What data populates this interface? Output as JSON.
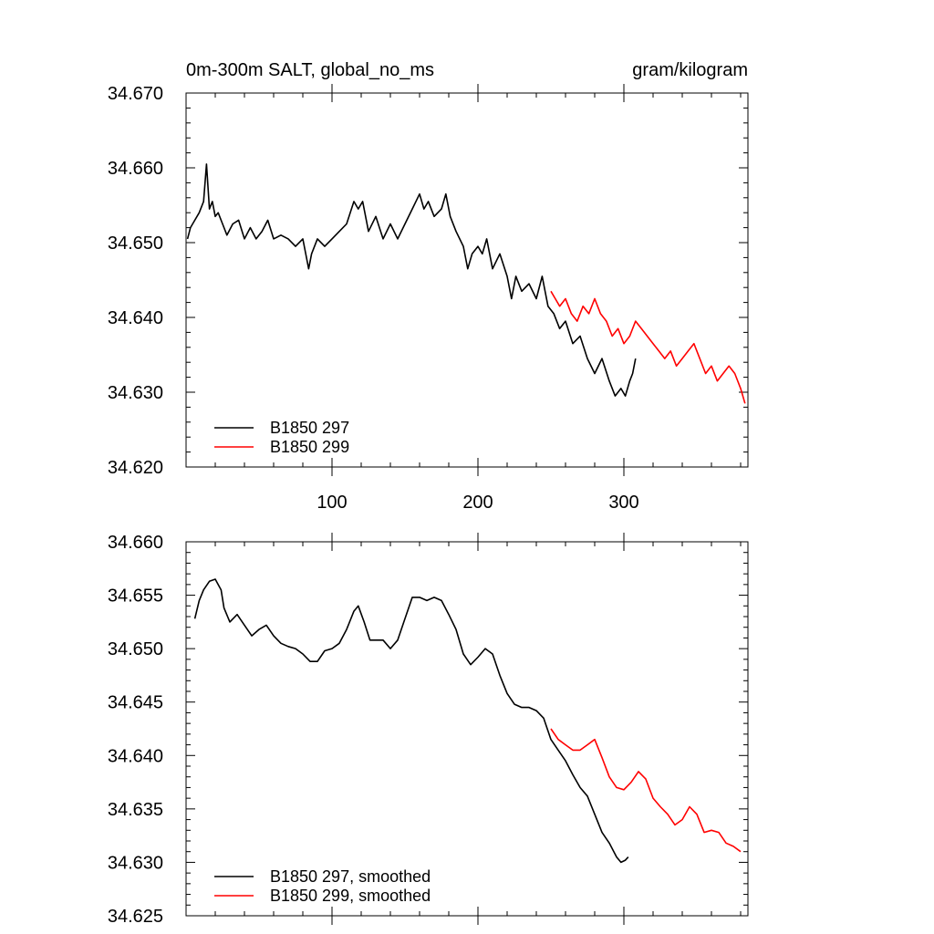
{
  "chart_data": [
    {
      "type": "line",
      "title_left": "0m-300m SALT, global_no_ms",
      "title_right": "gram/kilogram",
      "xlabel": "",
      "ylabel": "",
      "xlim": [
        0,
        385
      ],
      "ylim": [
        34.62,
        34.67
      ],
      "xticks": [
        100,
        200,
        300
      ],
      "yticks": [
        34.62,
        34.63,
        34.64,
        34.65,
        34.66,
        34.67
      ],
      "ytick_labels": [
        "34.620",
        "34.630",
        "34.640",
        "34.650",
        "34.660",
        "34.670"
      ],
      "legend_position": "bottom-left",
      "series": [
        {
          "name": "B1850 297",
          "color": "#000000",
          "x": [
            1,
            3,
            6,
            9,
            12,
            14,
            16,
            18,
            20,
            22,
            25,
            28,
            32,
            36,
            40,
            44,
            48,
            52,
            56,
            60,
            65,
            70,
            75,
            80,
            84,
            86,
            90,
            95,
            100,
            105,
            110,
            115,
            118,
            121,
            125,
            130,
            135,
            140,
            145,
            150,
            155,
            160,
            163,
            166,
            170,
            175,
            178,
            181,
            185,
            190,
            193,
            196,
            200,
            203,
            206,
            210,
            215,
            220,
            223,
            226,
            230,
            235,
            240,
            244,
            248,
            252,
            256,
            260,
            265,
            270,
            275,
            280,
            285,
            290,
            294,
            298,
            301,
            304,
            306,
            308
          ],
          "y": [
            34.6505,
            34.652,
            34.653,
            34.654,
            34.6555,
            34.6605,
            34.6545,
            34.6555,
            34.6535,
            34.654,
            34.6525,
            34.651,
            34.6525,
            34.653,
            34.6505,
            34.652,
            34.6505,
            34.6515,
            34.653,
            34.6505,
            34.651,
            34.6505,
            34.6495,
            34.6505,
            34.6465,
            34.6485,
            34.6505,
            34.6495,
            34.6505,
            34.6515,
            34.6525,
            34.6555,
            34.6545,
            34.6555,
            34.6515,
            34.6535,
            34.6505,
            34.6525,
            34.6505,
            34.6525,
            34.6545,
            34.6565,
            34.6545,
            34.6555,
            34.6535,
            34.6545,
            34.6565,
            34.6535,
            34.6515,
            34.6495,
            34.6465,
            34.6485,
            34.6495,
            34.6485,
            34.6505,
            34.6465,
            34.6485,
            34.6455,
            34.6425,
            34.6455,
            34.6435,
            34.6445,
            34.6425,
            34.6455,
            34.6415,
            34.6405,
            34.6385,
            34.6395,
            34.6365,
            34.6375,
            34.6345,
            34.6325,
            34.6345,
            34.6315,
            34.6295,
            34.6305,
            34.6295,
            34.6315,
            34.6325,
            34.6345
          ]
        },
        {
          "name": "B1850 299",
          "color": "#ff0000",
          "x": [
            250,
            253,
            256,
            260,
            264,
            268,
            272,
            276,
            280,
            284,
            288,
            292,
            296,
            300,
            304,
            308,
            312,
            316,
            320,
            324,
            328,
            332,
            336,
            340,
            344,
            348,
            352,
            356,
            360,
            364,
            368,
            372,
            376,
            380,
            383
          ],
          "y": [
            34.6435,
            34.6425,
            34.6415,
            34.6425,
            34.6405,
            34.6395,
            34.6415,
            34.6405,
            34.6425,
            34.6405,
            34.6395,
            34.6375,
            34.6385,
            34.6365,
            34.6375,
            34.6395,
            34.6385,
            34.6375,
            34.6365,
            34.6355,
            34.6345,
            34.6355,
            34.6335,
            34.6345,
            34.6355,
            34.6365,
            34.6345,
            34.6325,
            34.6335,
            34.6315,
            34.6325,
            34.6335,
            34.6325,
            34.6305,
            34.6285
          ]
        }
      ]
    },
    {
      "type": "line",
      "title_left": "",
      "title_right": "",
      "xlabel": "",
      "ylabel": "",
      "xlim": [
        0,
        385
      ],
      "ylim": [
        34.625,
        34.66
      ],
      "xticks": [
        100,
        200,
        300
      ],
      "yticks": [
        34.625,
        34.63,
        34.635,
        34.64,
        34.645,
        34.65,
        34.655,
        34.66
      ],
      "ytick_labels": [
        "34.625",
        "34.630",
        "34.635",
        "34.640",
        "34.645",
        "34.650",
        "34.655",
        "34.660"
      ],
      "legend_position": "bottom-left",
      "series": [
        {
          "name": "B1850 297, smoothed",
          "color": "#000000",
          "x": [
            6,
            9,
            12,
            16,
            20,
            24,
            26,
            30,
            35,
            40,
            45,
            50,
            55,
            60,
            65,
            70,
            75,
            80,
            85,
            90,
            95,
            100,
            105,
            110,
            115,
            118,
            122,
            126,
            130,
            135,
            140,
            145,
            150,
            155,
            160,
            165,
            170,
            175,
            180,
            185,
            190,
            195,
            200,
            205,
            210,
            215,
            220,
            225,
            230,
            235,
            240,
            245,
            250,
            255,
            260,
            265,
            270,
            275,
            280,
            285,
            290,
            295,
            298,
            301,
            303
          ],
          "y": [
            34.6528,
            34.6545,
            34.6555,
            34.6563,
            34.6565,
            34.6555,
            34.6538,
            34.6525,
            34.6532,
            34.6522,
            34.6512,
            34.6518,
            34.6522,
            34.6512,
            34.6505,
            34.6502,
            34.65,
            34.6495,
            34.6488,
            34.6488,
            34.6498,
            34.65,
            34.6505,
            34.6518,
            34.6535,
            34.654,
            34.6525,
            34.6508,
            34.6508,
            34.6508,
            34.65,
            34.6508,
            34.6528,
            34.6548,
            34.6548,
            34.6545,
            34.6548,
            34.6545,
            34.6532,
            34.6518,
            34.6495,
            34.6485,
            34.6492,
            34.65,
            34.6495,
            34.6475,
            34.6458,
            34.6448,
            34.6445,
            34.6445,
            34.6442,
            34.6435,
            34.6415,
            34.6405,
            34.6395,
            34.6382,
            34.637,
            34.6362,
            34.6345,
            34.6328,
            34.6318,
            34.6305,
            34.63,
            34.6302,
            34.6305
          ]
        },
        {
          "name": "B1850 299, smoothed",
          "color": "#ff0000",
          "x": [
            250,
            255,
            260,
            265,
            270,
            275,
            280,
            285,
            290,
            295,
            300,
            305,
            310,
            315,
            320,
            325,
            330,
            335,
            340,
            345,
            350,
            355,
            360,
            365,
            370,
            375,
            380
          ],
          "y": [
            34.6425,
            34.6415,
            34.641,
            34.6405,
            34.6405,
            34.641,
            34.6415,
            34.6398,
            34.638,
            34.637,
            34.6368,
            34.6375,
            34.6385,
            34.6378,
            34.636,
            34.6352,
            34.6345,
            34.6335,
            34.634,
            34.6352,
            34.6345,
            34.6328,
            34.633,
            34.6328,
            34.6318,
            34.6315,
            34.631
          ]
        }
      ]
    }
  ]
}
